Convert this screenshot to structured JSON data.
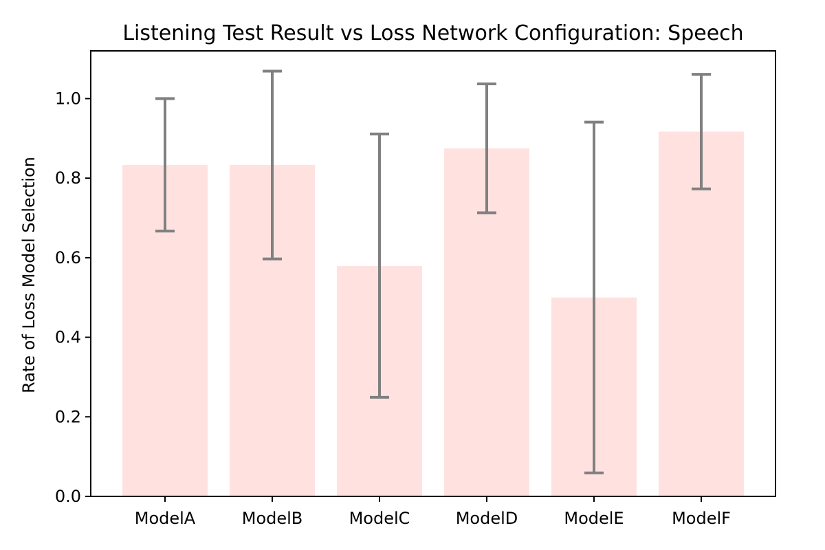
{
  "chart_data": {
    "type": "bar",
    "title": "Listening Test Result vs Loss Network Configuration: Speech",
    "xlabel": "",
    "ylabel": "Rate of Loss Model Selection",
    "categories": [
      "ModelA",
      "ModelB",
      "ModelC",
      "ModelD",
      "ModelE",
      "ModelF"
    ],
    "values": [
      0.833,
      0.833,
      0.579,
      0.875,
      0.5,
      0.917
    ],
    "error_low": [
      0.667,
      0.597,
      0.249,
      0.713,
      0.059,
      0.773
    ],
    "error_high": [
      1.0,
      1.069,
      0.911,
      1.037,
      0.941,
      1.061
    ],
    "ylim": [
      0.0,
      1.12
    ],
    "yticks": [
      0.0,
      0.2,
      0.4,
      0.6,
      0.8,
      1.0
    ],
    "ytick_labels": [
      "0.0",
      "0.2",
      "0.4",
      "0.6",
      "0.8",
      "1.0"
    ],
    "grid": false,
    "legend": "none",
    "colors": {
      "bar": "#ffe2e0",
      "errorbar": "#808080",
      "axes": "#000000"
    }
  }
}
